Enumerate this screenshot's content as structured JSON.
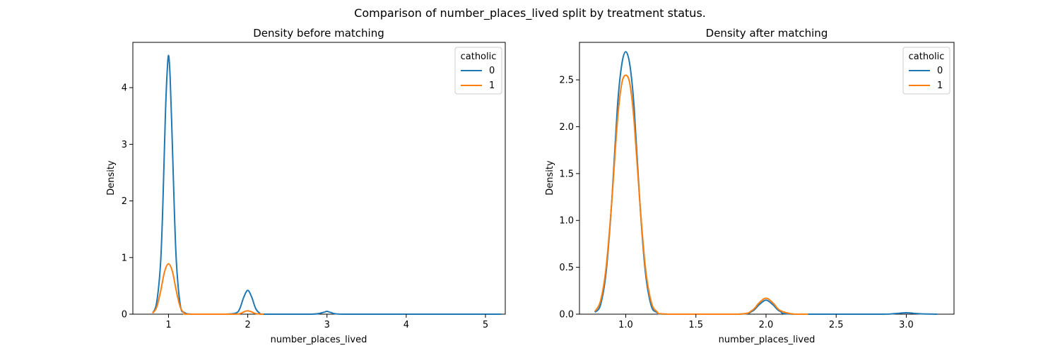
{
  "figure": {
    "suptitle": "Comparison of number_places_lived split by treatment status."
  },
  "chart_data": [
    {
      "type": "line",
      "title": "Density before matching",
      "xlabel": "number_places_lived",
      "ylabel": "Density",
      "xlim": [
        0.55,
        5.25
      ],
      "ylim": [
        0,
        4.8
      ],
      "xticks": [
        1,
        2,
        3,
        4,
        5
      ],
      "xtick_labels": [
        "1",
        "2",
        "3",
        "4",
        "5"
      ],
      "yticks": [
        0,
        1,
        2,
        3,
        4
      ],
      "ytick_labels": [
        "0",
        "1",
        "2",
        "3",
        "4"
      ],
      "legend": {
        "title": "catholic",
        "position": "top-right"
      },
      "series": [
        {
          "name": "0",
          "color": "#1f77b4",
          "x": [
            0.8,
            0.85,
            0.9,
            0.93,
            0.96,
            0.98,
            1.0,
            1.02,
            1.04,
            1.07,
            1.1,
            1.15,
            1.2,
            1.3,
            1.7,
            1.85,
            1.9,
            1.95,
            2.0,
            2.05,
            2.1,
            2.15,
            2.2,
            2.8,
            2.95,
            3.0,
            3.05,
            3.2,
            4.0,
            4.5,
            5.2
          ],
          "y": [
            0.02,
            0.2,
            0.9,
            2.0,
            3.5,
            4.2,
            4.57,
            4.2,
            3.4,
            2.0,
            0.9,
            0.15,
            0.03,
            0.0,
            0.0,
            0.02,
            0.1,
            0.3,
            0.42,
            0.3,
            0.1,
            0.02,
            0.0,
            0.0,
            0.03,
            0.05,
            0.03,
            0.0,
            0.0,
            0.0,
            0.0
          ]
        },
        {
          "name": "1",
          "color": "#ff7f0e",
          "x": [
            0.8,
            0.85,
            0.9,
            0.95,
            1.0,
            1.05,
            1.1,
            1.15,
            1.2,
            1.25,
            1.8,
            1.9,
            1.95,
            2.0,
            2.05,
            2.1,
            2.2
          ],
          "y": [
            0.02,
            0.12,
            0.4,
            0.75,
            0.89,
            0.75,
            0.4,
            0.12,
            0.02,
            0.0,
            0.0,
            0.01,
            0.04,
            0.06,
            0.04,
            0.01,
            0.0
          ]
        }
      ]
    },
    {
      "type": "line",
      "title": "Density after matching",
      "xlabel": "number_places_lived",
      "ylabel": "Density",
      "xlim": [
        0.67,
        3.34
      ],
      "ylim": [
        0,
        2.9
      ],
      "xticks": [
        1.0,
        1.5,
        2.0,
        2.5,
        3.0
      ],
      "xtick_labels": [
        "1.0",
        "1.5",
        "2.0",
        "2.5",
        "3.0"
      ],
      "yticks": [
        0.0,
        0.5,
        1.0,
        1.5,
        2.0,
        2.5
      ],
      "ytick_labels": [
        "0.0",
        "0.5",
        "1.0",
        "1.5",
        "2.0",
        "2.5"
      ],
      "legend": {
        "title": "catholic",
        "position": "top-right"
      },
      "series": [
        {
          "name": "0",
          "color": "#1f77b4",
          "x": [
            0.78,
            0.82,
            0.86,
            0.9,
            0.94,
            0.97,
            1.0,
            1.03,
            1.06,
            1.1,
            1.14,
            1.18,
            1.22,
            1.3,
            1.8,
            1.9,
            1.95,
            2.0,
            2.05,
            2.1,
            2.2,
            2.8,
            2.9,
            2.95,
            3.0,
            3.05,
            3.1,
            3.22
          ],
          "y": [
            0.02,
            0.1,
            0.45,
            1.2,
            2.2,
            2.65,
            2.8,
            2.65,
            2.2,
            1.2,
            0.45,
            0.1,
            0.02,
            0.0,
            0.0,
            0.03,
            0.1,
            0.15,
            0.1,
            0.03,
            0.0,
            0.0,
            0.004,
            0.01,
            0.015,
            0.01,
            0.004,
            0.0
          ]
        },
        {
          "name": "1",
          "color": "#ff7f0e",
          "x": [
            0.78,
            0.82,
            0.86,
            0.9,
            0.94,
            0.97,
            1.0,
            1.03,
            1.06,
            1.1,
            1.14,
            1.18,
            1.22,
            1.3,
            1.8,
            1.9,
            1.95,
            2.0,
            2.05,
            2.1,
            2.2,
            2.3
          ],
          "y": [
            0.03,
            0.14,
            0.5,
            1.2,
            2.05,
            2.45,
            2.55,
            2.45,
            2.05,
            1.2,
            0.5,
            0.14,
            0.03,
            0.0,
            0.0,
            0.04,
            0.12,
            0.17,
            0.12,
            0.04,
            0.0,
            0.0
          ]
        }
      ]
    }
  ]
}
